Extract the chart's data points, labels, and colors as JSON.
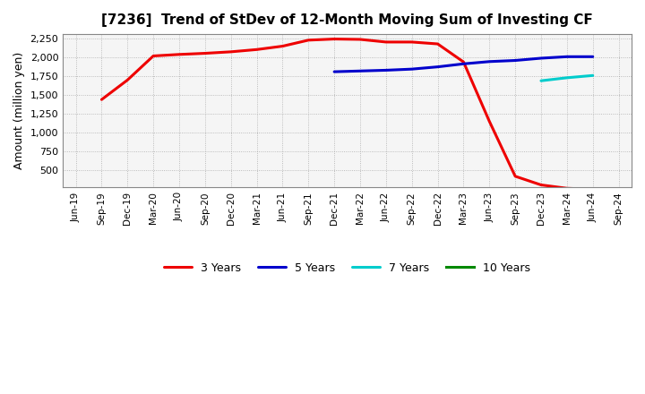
{
  "title": "[7236]  Trend of StDev of 12-Month Moving Sum of Investing CF",
  "ylabel": "Amount (million yen)",
  "ylim": [
    270,
    2310
  ],
  "yticks": [
    500,
    750,
    1000,
    1250,
    1500,
    1750,
    2000,
    2250
  ],
  "background_color": "#ffffff",
  "plot_bg_color": "#f5f5f5",
  "grid_color": "#999999",
  "series": {
    "3 Years": {
      "color": "#ee0000",
      "x": [
        "Sep-19",
        "Dec-19",
        "Mar-20",
        "Jun-20",
        "Sep-20",
        "Dec-20",
        "Mar-21",
        "Jun-21",
        "Sep-21",
        "Dec-21",
        "Mar-22",
        "Jun-22",
        "Sep-22",
        "Dec-22",
        "Mar-23",
        "Jun-23",
        "Sep-23",
        "Dec-23",
        "Mar-24",
        "Jun-24"
      ],
      "y": [
        1440,
        1700,
        2020,
        2040,
        2055,
        2075,
        2105,
        2150,
        2230,
        2245,
        2240,
        2205,
        2205,
        2180,
        1940,
        1150,
        420,
        305,
        260,
        248
      ]
    },
    "5 Years": {
      "color": "#0000cc",
      "x": [
        "Dec-21",
        "Mar-22",
        "Jun-22",
        "Sep-22",
        "Dec-22",
        "Mar-23",
        "Jun-23",
        "Sep-23",
        "Dec-23",
        "Mar-24",
        "Jun-24"
      ],
      "y": [
        1810,
        1820,
        1830,
        1845,
        1875,
        1915,
        1945,
        1960,
        1990,
        2010,
        2010
      ]
    },
    "7 Years": {
      "color": "#00cccc",
      "x": [
        "Dec-23",
        "Mar-24",
        "Jun-24"
      ],
      "y": [
        1690,
        1730,
        1760
      ]
    },
    "10 Years": {
      "color": "#008800",
      "x": [],
      "y": []
    }
  },
  "xtick_labels": [
    "Jun-19",
    "Sep-19",
    "Dec-19",
    "Mar-20",
    "Jun-20",
    "Sep-20",
    "Dec-20",
    "Mar-21",
    "Jun-21",
    "Sep-21",
    "Dec-21",
    "Mar-22",
    "Jun-22",
    "Sep-22",
    "Dec-22",
    "Mar-23",
    "Jun-23",
    "Sep-23",
    "Dec-23",
    "Mar-24",
    "Jun-24",
    "Sep-24"
  ],
  "legend_items": [
    "3 Years",
    "5 Years",
    "7 Years",
    "10 Years"
  ],
  "legend_colors": [
    "#ee0000",
    "#0000cc",
    "#00cccc",
    "#008800"
  ]
}
